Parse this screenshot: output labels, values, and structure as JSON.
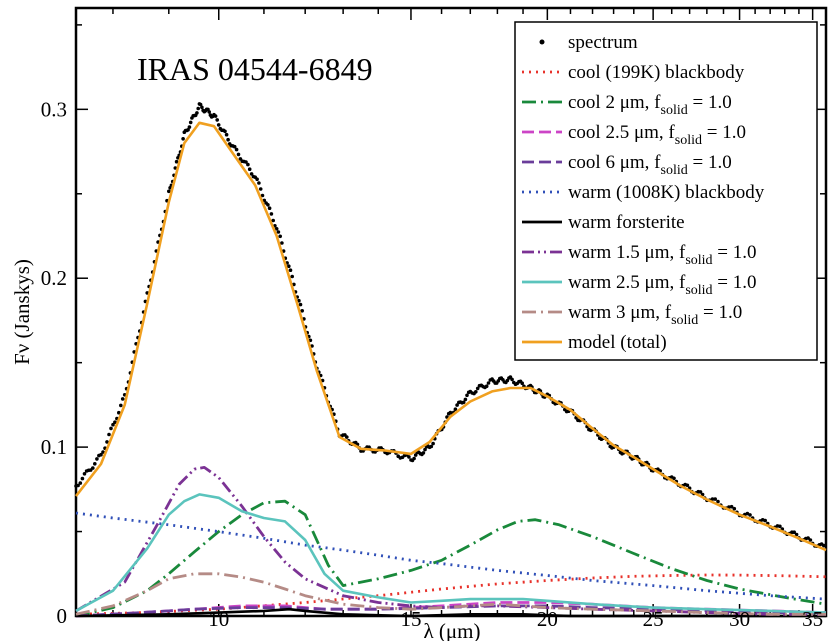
{
  "chart_data": {
    "type": "line",
    "title": "IRAS 04544-6849",
    "xlabel": "λ (μm)",
    "ylabel": "Fν (Janskys)",
    "xscale": "log",
    "xlim": [
      7.4,
      36.0
    ],
    "ylim": [
      0.0,
      0.36
    ],
    "xticks": [
      10,
      15,
      20,
      25,
      30,
      35
    ],
    "yticks": [
      0.1,
      0.2,
      0.3
    ],
    "ytick_labels": [
      "0.1",
      "0.2",
      "0.3"
    ],
    "y_zero_label": "0",
    "grid": false,
    "legend_position": "top-right",
    "series": [
      {
        "name": "spectrum",
        "label_main": "spectrum",
        "label_sub": "",
        "label_tail": "",
        "color": "#000000",
        "style": "points",
        "x": [
          7.4,
          7.8,
          8.2,
          8.6,
          9.0,
          9.3,
          9.6,
          9.9,
          10.3,
          10.8,
          11.3,
          11.8,
          12.3,
          12.9,
          13.5,
          14.2,
          15.0,
          15.6,
          16.3,
          17.0,
          17.8,
          18.5,
          19.3,
          20.0,
          21.0,
          22.0,
          23.0,
          24.0,
          25.0,
          26.5,
          28.0,
          30.0,
          32.0,
          34.0,
          36.0
        ],
        "y": [
          0.077,
          0.095,
          0.13,
          0.19,
          0.25,
          0.285,
          0.302,
          0.296,
          0.278,
          0.26,
          0.23,
          0.19,
          0.148,
          0.108,
          0.099,
          0.098,
          0.093,
          0.1,
          0.12,
          0.132,
          0.139,
          0.14,
          0.135,
          0.13,
          0.121,
          0.11,
          0.1,
          0.094,
          0.087,
          0.078,
          0.07,
          0.061,
          0.054,
          0.047,
          0.04
        ]
      },
      {
        "name": "cool (199K) blackbody",
        "label_main": "cool (199K) blackbody",
        "label_sub": "",
        "label_tail": "",
        "color": "#e8322b",
        "style": "dotted",
        "x": [
          7.4,
          8.5,
          10,
          12,
          14,
          16,
          18,
          20,
          22,
          24,
          26,
          28,
          30,
          33,
          36
        ],
        "y": [
          0.001,
          0.002,
          0.004,
          0.008,
          0.012,
          0.016,
          0.019,
          0.021,
          0.0225,
          0.0235,
          0.024,
          0.0243,
          0.0242,
          0.0238,
          0.0232
        ]
      },
      {
        "name": "cool 2 μm, f_solid = 1.0",
        "label_main": "cool 2 μm, f",
        "label_sub": "solid",
        "label_tail": " = 1.0",
        "color": "#19893b",
        "style": "dashdot",
        "x": [
          7.4,
          8.0,
          8.6,
          9.0,
          9.5,
          10.0,
          10.5,
          11.0,
          11.5,
          12.0,
          12.6,
          13.0,
          14.0,
          15.0,
          16.0,
          17.0,
          18.0,
          18.8,
          19.5,
          20.5,
          22.0,
          24.0,
          26.0,
          28.0,
          30.0,
          33.0,
          36.0
        ],
        "y": [
          0.0,
          0.005,
          0.015,
          0.025,
          0.038,
          0.05,
          0.06,
          0.067,
          0.068,
          0.06,
          0.03,
          0.018,
          0.022,
          0.027,
          0.033,
          0.042,
          0.051,
          0.056,
          0.057,
          0.054,
          0.047,
          0.037,
          0.028,
          0.021,
          0.016,
          0.011,
          0.007
        ]
      },
      {
        "name": "cool 2.5 μm, f_solid = 1.0",
        "label_main": "cool 2.5 μm, f",
        "label_sub": "solid",
        "label_tail": " = 1.0",
        "color": "#cc44c6",
        "style": "dashed",
        "x": [
          7.4,
          8.5,
          9.5,
          10.5,
          11.5,
          12.5,
          14.0,
          16.0,
          18.0,
          20.0,
          22.0,
          25.0,
          28.0,
          32.0,
          36.0
        ],
        "y": [
          0.0,
          0.002,
          0.004,
          0.006,
          0.006,
          0.004,
          0.004,
          0.006,
          0.008,
          0.008,
          0.007,
          0.005,
          0.004,
          0.003,
          0.002
        ]
      },
      {
        "name": "cool 6 μm, f_solid = 1.0",
        "label_main": "cool 6 μm, f",
        "label_sub": "solid",
        "label_tail": " = 1.0",
        "color": "#6a3d9a",
        "style": "dashed",
        "x": [
          7.4,
          8.5,
          9.5,
          10.5,
          11.5,
          12.5,
          14.0,
          16.0,
          18.0,
          20.0,
          22.0,
          25.0,
          28.0,
          32.0,
          36.0
        ],
        "y": [
          0.0,
          0.002,
          0.004,
          0.005,
          0.005,
          0.004,
          0.004,
          0.005,
          0.006,
          0.006,
          0.005,
          0.004,
          0.003,
          0.002,
          0.002
        ]
      },
      {
        "name": "warm (1008K) blackbody",
        "label_main": "warm (1008K) blackbody",
        "label_sub": "",
        "label_tail": "",
        "color": "#3050b8",
        "style": "dotted",
        "x": [
          7.4,
          8.0,
          9.0,
          10.0,
          11.0,
          12.0,
          13.0,
          14.0,
          15.0,
          16.0,
          18.0,
          20.0,
          22.0,
          25.0,
          28.0,
          32.0,
          36.0
        ],
        "y": [
          0.061,
          0.058,
          0.054,
          0.05,
          0.046,
          0.042,
          0.039,
          0.036,
          0.033,
          0.031,
          0.027,
          0.024,
          0.021,
          0.018,
          0.015,
          0.012,
          0.01
        ]
      },
      {
        "name": "warm forsterite",
        "label_main": "warm forsterite",
        "label_sub": "",
        "label_tail": "",
        "color": "#000000",
        "style": "solid",
        "x": [
          7.4,
          9.0,
          10.0,
          11.0,
          11.6,
          12.0,
          13.0,
          15.0,
          17.0,
          19.0,
          21.0,
          24.0,
          28.0,
          32.0,
          36.0
        ],
        "y": [
          0.0,
          0.001,
          0.002,
          0.003,
          0.004,
          0.003,
          0.001,
          0.0,
          0.001,
          0.001,
          0.0,
          0.0,
          0.0,
          0.0,
          0.0
        ]
      },
      {
        "name": "warm 1.5 μm, f_solid = 1.0",
        "label_main": "warm 1.5 μm, f",
        "label_sub": "solid",
        "label_tail": " = 1.0",
        "color": "#7b3294",
        "style": "dashdotdot",
        "x": [
          7.4,
          8.2,
          8.8,
          9.2,
          9.5,
          9.7,
          10.0,
          10.5,
          11.0,
          11.5,
          12.0,
          13.0,
          14.0,
          15.0,
          16.0,
          17.0,
          18.0,
          20.0,
          22.0,
          25.0,
          28.0,
          32.0,
          36.0
        ],
        "y": [
          0.003,
          0.02,
          0.055,
          0.078,
          0.087,
          0.088,
          0.082,
          0.065,
          0.047,
          0.032,
          0.022,
          0.012,
          0.008,
          0.006,
          0.005,
          0.006,
          0.006,
          0.005,
          0.004,
          0.003,
          0.002,
          0.001,
          0.001
        ]
      },
      {
        "name": "warm 2.5 μm, f_solid = 1.0",
        "label_main": "warm 2.5 μm, f",
        "label_sub": "solid",
        "label_tail": " = 1.0",
        "color": "#5bc4bd",
        "style": "solid",
        "x": [
          7.4,
          8.0,
          8.6,
          9.0,
          9.3,
          9.6,
          10.0,
          10.5,
          11.0,
          11.5,
          12.0,
          12.5,
          13.0,
          14.0,
          15.0,
          16.0,
          17.0,
          18.0,
          19.0,
          20.0,
          22.0,
          25.0,
          28.0,
          32.0,
          36.0
        ],
        "y": [
          0.003,
          0.015,
          0.04,
          0.06,
          0.068,
          0.072,
          0.07,
          0.062,
          0.058,
          0.056,
          0.045,
          0.025,
          0.015,
          0.011,
          0.008,
          0.009,
          0.01,
          0.01,
          0.01,
          0.009,
          0.007,
          0.005,
          0.004,
          0.003,
          0.002
        ]
      },
      {
        "name": "warm 3 μm, f_solid = 1.0",
        "label_main": "warm 3 μm, f",
        "label_sub": "solid",
        "label_tail": " = 1.0",
        "color": "#b58b86",
        "style": "dashdot",
        "x": [
          7.4,
          8.0,
          8.6,
          9.0,
          9.5,
          10.0,
          10.5,
          11.0,
          11.5,
          12.0,
          13.0,
          14.0,
          15.0,
          16.0,
          17.0,
          18.0,
          19.0,
          20.0,
          22.0,
          25.0,
          28.0,
          32.0,
          36.0
        ],
        "y": [
          0.001,
          0.006,
          0.015,
          0.022,
          0.025,
          0.025,
          0.023,
          0.02,
          0.016,
          0.012,
          0.007,
          0.005,
          0.004,
          0.005,
          0.006,
          0.007,
          0.006,
          0.005,
          0.004,
          0.003,
          0.002,
          0.001,
          0.001
        ]
      },
      {
        "name": "model (total)",
        "label_main": "model (total)",
        "label_sub": "",
        "label_tail": "",
        "color": "#f0a020",
        "style": "solid",
        "x": [
          7.4,
          7.8,
          8.2,
          8.6,
          9.0,
          9.3,
          9.6,
          9.9,
          10.3,
          10.8,
          11.3,
          11.8,
          12.3,
          12.9,
          13.5,
          14.2,
          15.0,
          15.6,
          16.3,
          17.0,
          17.8,
          18.5,
          19.3,
          20.0,
          21.0,
          22.0,
          23.0,
          24.0,
          25.0,
          26.5,
          28.0,
          30.0,
          32.0,
          34.0,
          36.0
        ],
        "y": [
          0.071,
          0.09,
          0.125,
          0.185,
          0.245,
          0.28,
          0.292,
          0.29,
          0.274,
          0.255,
          0.225,
          0.185,
          0.145,
          0.106,
          0.099,
          0.098,
          0.096,
          0.103,
          0.118,
          0.127,
          0.133,
          0.135,
          0.135,
          0.13,
          0.122,
          0.111,
          0.101,
          0.094,
          0.087,
          0.077,
          0.069,
          0.06,
          0.053,
          0.046,
          0.039
        ]
      }
    ]
  }
}
